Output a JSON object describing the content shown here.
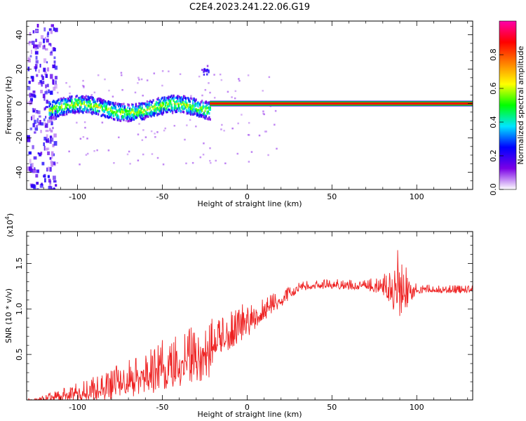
{
  "figure": {
    "title": "C2E4.2023.241.22.06.G19"
  },
  "chart_data": [
    {
      "type": "heatmap",
      "xlabel": "Height of straight line (km)",
      "ylabel": "Frequency (Hz)",
      "xlim": [
        -130,
        133
      ],
      "ylim": [
        -50,
        48
      ],
      "xticks": [
        -100,
        -50,
        0,
        50,
        100
      ],
      "yticks": [
        -40,
        -20,
        0,
        20,
        40
      ],
      "tone_segments": [
        {
          "x_start": -117,
          "x_end": -22,
          "freq_center": -3,
          "freq_spread": 5,
          "rel_amplitude": 0.45
        },
        {
          "x_start": -22,
          "x_end": 133,
          "freq_center": 0,
          "freq_spread": 1,
          "rel_amplitude": 0.88
        }
      ],
      "low_height_noise": {
        "x_start": -130,
        "x_end": -113,
        "freq_range": [
          -50,
          48
        ]
      },
      "side_feature": {
        "x": -25,
        "freq": 19
      },
      "colorbar": {
        "label": "Normalized spectral amplitude",
        "range": [
          0,
          1
        ],
        "ticks": [
          "0.0",
          "0.2",
          "0.4",
          "0.6",
          "0.8"
        ],
        "colors": [
          "#ffffff",
          "#7a00e6",
          "#0000ff",
          "#00e5ff",
          "#00ff00",
          "#ffff00",
          "#ff8000",
          "#ff0000",
          "#ff00aa"
        ]
      }
    },
    {
      "type": "line",
      "xlabel": "Height of straight line (km)",
      "ylabel": "SNR (10 * v/v)",
      "y_scale_note": "(x10",
      "y_scale_exp": "4",
      "y_scale_close": ")",
      "xlim": [
        -130,
        133
      ],
      "ylim": [
        0,
        1.85
      ],
      "xticks": [
        -100,
        -50,
        0,
        50,
        100
      ],
      "yticks": [
        0.5,
        1.0,
        1.5
      ],
      "ytick_labels": [
        "0.5",
        "1.0",
        "1.5"
      ],
      "series": [
        {
          "color": "#ee2222",
          "x": [
            -130,
            -120,
            -110,
            -100,
            -90,
            -80,
            -70,
            -60,
            -50,
            -40,
            -30,
            -20,
            -19,
            -10,
            0,
            10,
            20,
            30,
            40,
            50,
            60,
            70,
            80,
            85,
            90,
            92,
            95,
            100,
            110,
            120,
            133
          ],
          "y": [
            0.0,
            0.02,
            0.06,
            0.1,
            0.14,
            0.2,
            0.27,
            0.33,
            0.4,
            0.47,
            0.55,
            0.6,
            0.68,
            0.78,
            0.9,
            1.02,
            1.12,
            1.25,
            1.28,
            1.28,
            1.27,
            1.27,
            1.27,
            1.28,
            1.3,
            1.2,
            1.28,
            1.23,
            1.22,
            1.22,
            1.22
          ],
          "noise_amplitude": [
            0.01,
            0.03,
            0.06,
            0.09,
            0.12,
            0.16,
            0.2,
            0.23,
            0.26,
            0.28,
            0.3,
            0.33,
            0.2,
            0.2,
            0.18,
            0.12,
            0.08,
            0.05,
            0.05,
            0.05,
            0.05,
            0.05,
            0.1,
            0.2,
            0.45,
            0.3,
            0.2,
            0.05,
            0.04,
            0.04,
            0.04
          ]
        }
      ]
    }
  ]
}
